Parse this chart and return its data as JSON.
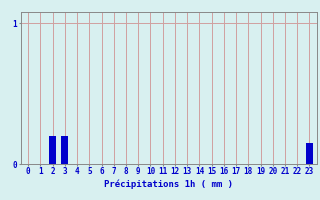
{
  "hours": [
    0,
    1,
    2,
    3,
    4,
    5,
    6,
    7,
    8,
    9,
    10,
    11,
    12,
    13,
    14,
    15,
    16,
    17,
    18,
    19,
    20,
    21,
    22,
    23
  ],
  "values": [
    0,
    0,
    0.2,
    0.2,
    0,
    0,
    0,
    0,
    0,
    0,
    0,
    0,
    0,
    0,
    0,
    0,
    0,
    0,
    0,
    0,
    0,
    0,
    0,
    0.15
  ],
  "bar_color": "#0000cc",
  "background_color": "#d8f0f0",
  "grid_color": "#d0a0a0",
  "axis_color": "#888888",
  "text_color": "#0000cc",
  "xlabel": "Précipitations 1h ( mm )",
  "ylim": [
    0,
    1.08
  ],
  "xlim": [
    -0.6,
    23.6
  ],
  "label_fontsize": 6.5,
  "tick_fontsize": 5.5
}
